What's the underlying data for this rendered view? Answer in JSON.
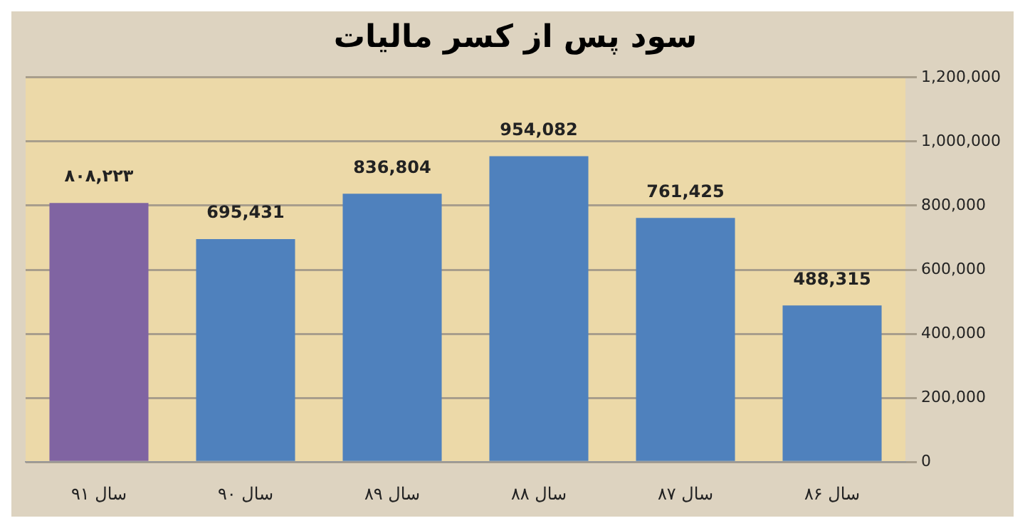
{
  "chart_data": {
    "type": "bar",
    "title": "سود پس از کسر مالیات",
    "categories": [
      "سال ۹۱",
      "سال ۹۰",
      "سال ۸۹",
      "سال ۸۸",
      "سال ۸۷",
      "سال ۸۶"
    ],
    "values": [
      808223,
      695431,
      836804,
      954082,
      761425,
      488315
    ],
    "value_labels": [
      "۸۰۸,۲۲۳",
      "695,431",
      "836,804",
      "954,082",
      "761,425",
      "488,315"
    ],
    "colors": [
      "#8064a2",
      "#4f81bd",
      "#4f81bd",
      "#4f81bd",
      "#4f81bd",
      "#4f81bd"
    ],
    "ylim": [
      0,
      1200000
    ],
    "yticks": [
      0,
      {
        "value": 200000,
        "label": "200,000"
      },
      {
        "value": 400000,
        "label": "400,000"
      },
      {
        "value": 600000,
        "label": "600,000"
      },
      {
        "value": 800000,
        "label": "800,000"
      },
      {
        "value": 1000000,
        "label": "1,000,000"
      },
      {
        "value": 1200000,
        "label": "1,200,000"
      }
    ],
    "grid": "y"
  }
}
